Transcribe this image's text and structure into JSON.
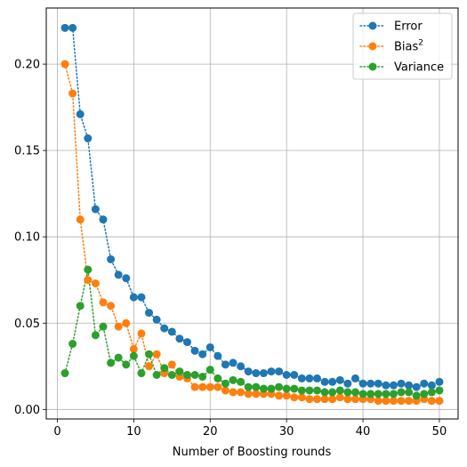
{
  "chart_data": {
    "type": "line",
    "title": "",
    "xlabel": "Number of Boosting rounds",
    "ylabel": "",
    "xlim": [
      -1.45,
      52.45
    ],
    "ylim": [
      -0.0055,
      0.2325
    ],
    "xticks": [
      0,
      10,
      20,
      30,
      40,
      50
    ],
    "yticks": [
      0.0,
      0.05,
      0.1,
      0.15,
      0.2
    ],
    "xtick_labels": [
      "0",
      "10",
      "20",
      "30",
      "40",
      "50"
    ],
    "ytick_labels": [
      "0.00",
      "0.05",
      "0.10",
      "0.15",
      "0.20"
    ],
    "grid": true,
    "legend_position": "top-right",
    "line_style": "dotted",
    "marker": "circle",
    "x": [
      1,
      2,
      3,
      4,
      5,
      6,
      7,
      8,
      9,
      10,
      11,
      12,
      13,
      14,
      15,
      16,
      17,
      18,
      19,
      20,
      21,
      22,
      23,
      24,
      25,
      26,
      27,
      28,
      29,
      30,
      31,
      32,
      33,
      34,
      35,
      36,
      37,
      38,
      39,
      40,
      41,
      42,
      43,
      44,
      45,
      46,
      47,
      48,
      49,
      50
    ],
    "series": [
      {
        "name": "Error",
        "legend_base": "Error",
        "legend_sup": "",
        "color": "#1f77b4",
        "values": [
          0.221,
          0.221,
          0.171,
          0.157,
          0.116,
          0.11,
          0.087,
          0.078,
          0.076,
          0.065,
          0.065,
          0.056,
          0.052,
          0.047,
          0.045,
          0.041,
          0.039,
          0.034,
          0.032,
          0.036,
          0.031,
          0.026,
          0.027,
          0.025,
          0.022,
          0.021,
          0.021,
          0.022,
          0.022,
          0.02,
          0.02,
          0.018,
          0.018,
          0.018,
          0.016,
          0.016,
          0.017,
          0.015,
          0.018,
          0.015,
          0.015,
          0.015,
          0.014,
          0.014,
          0.015,
          0.014,
          0.013,
          0.015,
          0.014,
          0.016
        ]
      },
      {
        "name": "Bias^2",
        "legend_base": "Bias",
        "legend_sup": "2",
        "color": "#ff7f0e",
        "values": [
          0.2,
          0.183,
          0.11,
          0.075,
          0.073,
          0.062,
          0.06,
          0.048,
          0.05,
          0.035,
          0.044,
          0.025,
          0.032,
          0.021,
          0.026,
          0.019,
          0.018,
          0.013,
          0.013,
          0.013,
          0.013,
          0.011,
          0.01,
          0.01,
          0.009,
          0.009,
          0.009,
          0.009,
          0.008,
          0.008,
          0.007,
          0.007,
          0.006,
          0.006,
          0.006,
          0.006,
          0.007,
          0.006,
          0.006,
          0.006,
          0.006,
          0.005,
          0.005,
          0.005,
          0.005,
          0.005,
          0.005,
          0.006,
          0.005,
          0.005
        ]
      },
      {
        "name": "Variance",
        "legend_base": "Variance",
        "legend_sup": "",
        "color": "#2ca02c",
        "values": [
          0.021,
          0.038,
          0.06,
          0.081,
          0.043,
          0.048,
          0.027,
          0.03,
          0.026,
          0.031,
          0.021,
          0.032,
          0.02,
          0.024,
          0.02,
          0.022,
          0.02,
          0.02,
          0.019,
          0.023,
          0.018,
          0.015,
          0.017,
          0.016,
          0.013,
          0.013,
          0.012,
          0.012,
          0.013,
          0.012,
          0.012,
          0.011,
          0.011,
          0.011,
          0.01,
          0.01,
          0.011,
          0.01,
          0.01,
          0.009,
          0.009,
          0.009,
          0.009,
          0.009,
          0.01,
          0.01,
          0.008,
          0.009,
          0.01,
          0.011
        ]
      }
    ]
  }
}
